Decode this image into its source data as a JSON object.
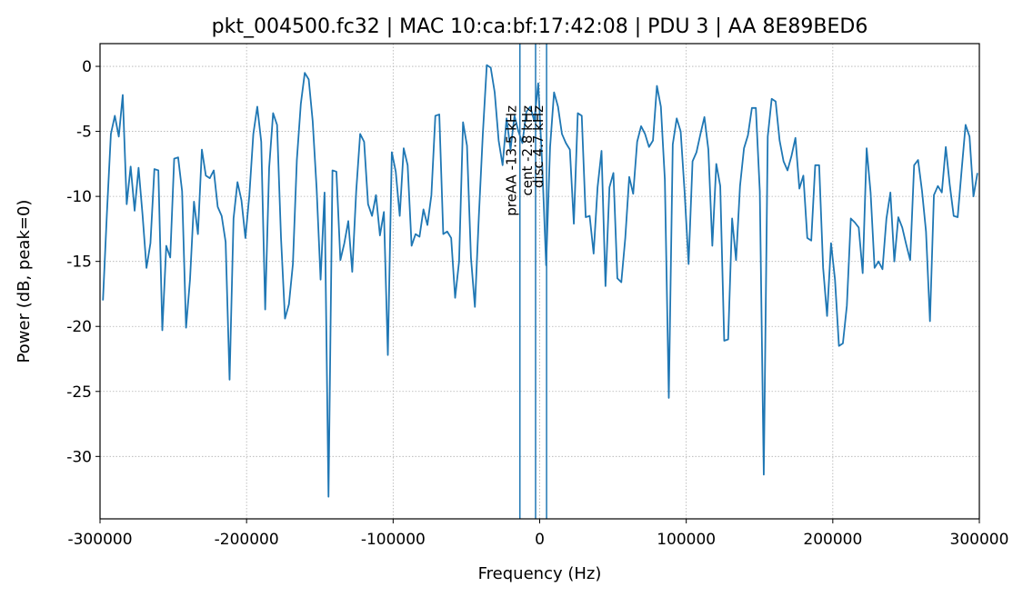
{
  "chart_data": {
    "type": "line",
    "title": "pkt_004500.fc32 | MAC 10:ca:bf:17:42:08 | PDU 3 | AA 8E89BED6",
    "x_label": "Frequency (Hz)",
    "y_label": "Power (dB, peak=0)",
    "xlim": [
      -300000,
      300000
    ],
    "ylim": [
      -34.8,
      1.75
    ],
    "xticks": [
      -300000,
      -200000,
      -100000,
      0,
      100000,
      200000,
      300000
    ],
    "yticks": [
      0,
      -5,
      -10,
      -15,
      -20,
      -25,
      -30
    ],
    "grid": true,
    "x": [
      -298000,
      -295300,
      -292600,
      -289900,
      -287200,
      -284500,
      -281800,
      -279100,
      -276400,
      -273700,
      -271000,
      -268300,
      -265600,
      -262900,
      -260200,
      -257500,
      -254800,
      -252100,
      -249400,
      -246700,
      -244000,
      -241300,
      -238600,
      -235900,
      -233200,
      -230500,
      -227800,
      -225100,
      -222400,
      -219700,
      -217000,
      -214300,
      -211600,
      -208900,
      -206200,
      -203500,
      -200800,
      -198100,
      -195400,
      -192700,
      -190000,
      -187300,
      -184600,
      -181900,
      -179200,
      -176500,
      -173800,
      -171100,
      -168400,
      -165700,
      -163000,
      -160300,
      -157600,
      -154900,
      -152200,
      -149500,
      -146800,
      -144100,
      -141400,
      -138700,
      -136000,
      -133300,
      -130600,
      -127900,
      -125200,
      -122500,
      -119800,
      -117100,
      -114400,
      -111700,
      -109000,
      -106300,
      -103600,
      -100900,
      -98200,
      -95500,
      -92800,
      -90100,
      -87400,
      -84700,
      -82000,
      -79300,
      -76600,
      -73900,
      -71200,
      -68500,
      -65800,
      -63100,
      -60400,
      -57700,
      -55000,
      -52300,
      -49600,
      -46900,
      -44200,
      -41500,
      -38800,
      -36100,
      -33400,
      -30700,
      -28000,
      -25300,
      -22600,
      -19900,
      -17200,
      -14500,
      -11800,
      -9100,
      -6400,
      -3700,
      -1000,
      1700,
      4400,
      7100,
      9800,
      12500,
      15200,
      17900,
      20600,
      23300,
      26000,
      28700,
      31400,
      34100,
      36800,
      39500,
      42200,
      44900,
      47600,
      50300,
      53000,
      55700,
      58400,
      61100,
      63800,
      66500,
      69200,
      71900,
      74600,
      77300,
      80000,
      82700,
      85400,
      88100,
      90800,
      93500,
      96200,
      98900,
      101600,
      104300,
      107000,
      109700,
      112400,
      115100,
      117800,
      120500,
      123200,
      125900,
      128600,
      131300,
      134000,
      136700,
      139400,
      142100,
      144800,
      147500,
      150200,
      152900,
      155600,
      158300,
      161000,
      163700,
      166400,
      169100,
      171800,
      174500,
      177200,
      179900,
      182600,
      185300,
      188000,
      190700,
      193400,
      196100,
      198800,
      201500,
      204200,
      206900,
      209600,
      212300,
      215000,
      217700,
      220400,
      223100,
      225800,
      228500,
      231200,
      233900,
      236600,
      239300,
      242000,
      244700,
      247400,
      250100,
      252800,
      255500,
      258200,
      260900,
      263600,
      266300,
      269000,
      271700,
      274400,
      277100,
      279800,
      282500,
      285200,
      287900,
      290600,
      293300,
      296000,
      298700
    ],
    "series": [
      {
        "color": "#1f77b4",
        "values": [
          -18.0,
          -11.3,
          -5.2,
          -3.8,
          -5.4,
          -2.2,
          -10.6,
          -7.7,
          -11.1,
          -7.8,
          -11.4,
          -15.5,
          -13.6,
          -7.9,
          -8.0,
          -20.3,
          -13.8,
          -14.7,
          -7.1,
          -7.0,
          -9.6,
          -20.1,
          -16.4,
          -10.4,
          -12.9,
          -6.4,
          -8.4,
          -8.6,
          -8.0,
          -10.8,
          -11.5,
          -13.5,
          -24.1,
          -11.7,
          -8.9,
          -10.3,
          -13.2,
          -9.9,
          -5.2,
          -3.1,
          -5.8,
          -18.7,
          -7.8,
          -3.6,
          -4.5,
          -13.2,
          -19.4,
          -18.3,
          -15.2,
          -7.2,
          -2.9,
          -0.5,
          -1.0,
          -4.2,
          -9.4,
          -16.4,
          -9.7,
          -33.1,
          -8.0,
          -8.1,
          -14.9,
          -13.6,
          -11.9,
          -15.8,
          -9.6,
          -5.2,
          -5.8,
          -10.6,
          -11.5,
          -9.9,
          -13.0,
          -11.2,
          -22.2,
          -6.6,
          -8.1,
          -11.5,
          -6.3,
          -7.6,
          -13.8,
          -12.9,
          -13.1,
          -11.0,
          -12.2,
          -9.9,
          -3.8,
          -3.7,
          -12.9,
          -12.7,
          -13.2,
          -17.8,
          -15.0,
          -4.3,
          -6.1,
          -14.7,
          -18.5,
          -11.5,
          -5.2,
          0.1,
          -0.1,
          -2.0,
          -5.7,
          -7.6,
          -4.0,
          -6.4,
          -3.8,
          -5.0,
          -5.9,
          -3.5,
          -3.1,
          -4.2,
          -1.3,
          -7.5,
          -15.3,
          -6.2,
          -2.0,
          -3.1,
          -5.2,
          -5.9,
          -6.4,
          -12.1,
          -3.6,
          -3.8,
          -11.6,
          -11.5,
          -14.4,
          -9.3,
          -6.5,
          -16.9,
          -9.3,
          -8.2,
          -16.3,
          -16.6,
          -13.2,
          -8.5,
          -9.8,
          -5.8,
          -4.6,
          -5.2,
          -6.2,
          -5.7,
          -1.5,
          -3.1,
          -8.7,
          -25.5,
          -6.0,
          -4.0,
          -5.0,
          -9.7,
          -15.2,
          -7.3,
          -6.6,
          -5.2,
          -3.9,
          -6.4,
          -13.8,
          -7.5,
          -9.2,
          -21.1,
          -21.0,
          -11.7,
          -14.9,
          -9.2,
          -6.3,
          -5.3,
          -3.2,
          -3.2,
          -9.6,
          -31.4,
          -5.4,
          -2.5,
          -2.7,
          -5.7,
          -7.3,
          -8.0,
          -6.9,
          -5.5,
          -9.4,
          -8.4,
          -13.2,
          -13.4,
          -7.6,
          -7.6,
          -15.5,
          -19.2,
          -13.6,
          -16.4,
          -21.5,
          -21.3,
          -18.4,
          -11.7,
          -12.0,
          -12.4,
          -15.9,
          -6.3,
          -9.7,
          -15.5,
          -15.0,
          -15.6,
          -11.7,
          -9.7,
          -15.0,
          -11.6,
          -12.4,
          -13.7,
          -14.9,
          -7.6,
          -7.2,
          -9.6,
          -12.7,
          -19.6,
          -9.9,
          -9.2,
          -9.7,
          -6.2,
          -9.1,
          -11.5,
          -11.6,
          -8.0,
          -4.5,
          -5.4,
          -10.0,
          -8.2
        ]
      }
    ],
    "markers": [
      {
        "x": -13500,
        "label": "preAA -13.5 kHz"
      },
      {
        "x": -2800,
        "label": "cent -2.8 kHz"
      },
      {
        "x": 4700,
        "label": "disc 4.7 kHz"
      }
    ]
  }
}
